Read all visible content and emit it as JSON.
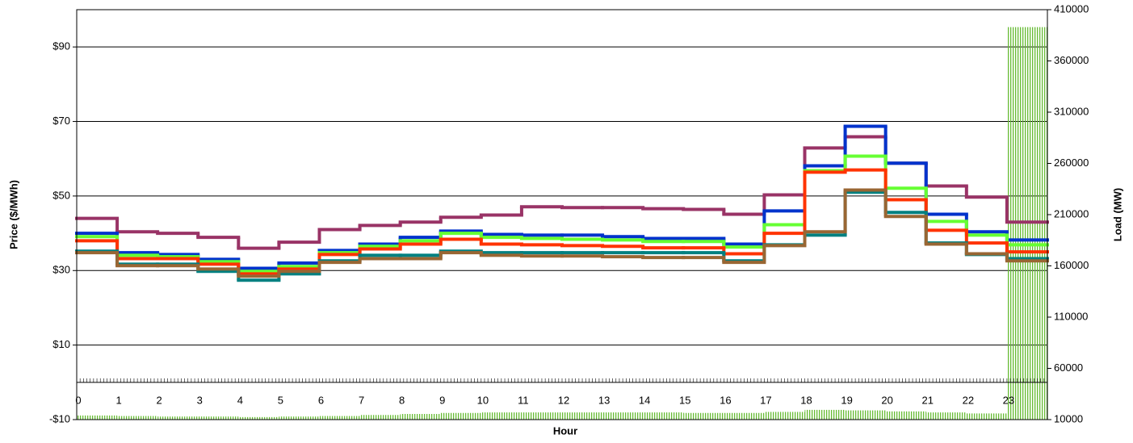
{
  "chart_data": {
    "type": "step-line-bar",
    "x_label": "Hour",
    "y_label": "Price ($/MWh)",
    "y2_label": "Load (MW)",
    "categories": [
      "0",
      "1",
      "2",
      "3",
      "4",
      "5",
      "6",
      "7",
      "8",
      "9",
      "10",
      "11",
      "12",
      "13",
      "14",
      "15",
      "16",
      "17",
      "18",
      "19",
      "20",
      "21",
      "22",
      "23"
    ],
    "xlim": [
      0,
      24
    ],
    "ylim": [
      -10,
      100
    ],
    "yticks": [
      {
        "value": -10,
        "label": "-$10"
      },
      {
        "value": 10,
        "label": "$10"
      },
      {
        "value": 30,
        "label": "$30"
      },
      {
        "value": 50,
        "label": "$50"
      },
      {
        "value": 70,
        "label": "$70"
      },
      {
        "value": 90,
        "label": "$90"
      }
    ],
    "y2lim": [
      10000,
      410000
    ],
    "y2ticks": [
      10000,
      60000,
      110000,
      160000,
      210000,
      260000,
      310000,
      360000,
      410000
    ],
    "grid": true,
    "series": [
      {
        "color": "#993366",
        "values": [
          44,
          40.4,
          40,
          38.9,
          36,
          37.6,
          41,
          42.1,
          43,
          44.3,
          44.9,
          47.1,
          46.9,
          46.9,
          46.6,
          46.4,
          45.1,
          50.3,
          62.9,
          65.9,
          58.8,
          52.7,
          49.7,
          43
        ]
      },
      {
        "color": "#0033cc",
        "values": [
          40,
          34.8,
          34.3,
          33,
          30.6,
          32,
          35.4,
          37.1,
          38.9,
          40.6,
          39.7,
          39.5,
          39.5,
          39.1,
          38.6,
          38.6,
          37.1,
          46,
          58.1,
          68.7,
          58.8,
          45.1,
          40.4,
          38.2
        ]
      },
      {
        "color": "#66ff33",
        "values": [
          39.1,
          34.1,
          33.7,
          32.4,
          29.8,
          31.1,
          34.8,
          36.5,
          38,
          40,
          38.9,
          38.6,
          38.4,
          38.2,
          37.8,
          37.8,
          36.3,
          42.3,
          56.8,
          60.7,
          52.1,
          43.2,
          39.5,
          36.9
        ]
      },
      {
        "color": "#ff3300",
        "values": [
          38,
          33.2,
          33.2,
          31.7,
          29.1,
          30.4,
          34.3,
          35.8,
          37.1,
          38.4,
          37.1,
          36.9,
          36.7,
          36.5,
          36.1,
          36.1,
          34.5,
          40,
          56.4,
          57,
          49,
          40.8,
          37.4,
          35
        ]
      },
      {
        "color": "#008080",
        "values": [
          35.2,
          31.7,
          31.7,
          29.8,
          27.4,
          29.1,
          32.6,
          34.1,
          34.1,
          35.2,
          34.8,
          34.8,
          34.8,
          34.8,
          34.8,
          34.8,
          32.6,
          36.9,
          39.5,
          51,
          45.6,
          37.4,
          34.3,
          33.2
        ]
      },
      {
        "color": "#996633",
        "values": [
          34.8,
          31.3,
          31.3,
          30.4,
          28.5,
          29.8,
          32.2,
          33.2,
          33.2,
          34.8,
          34.1,
          33.9,
          33.9,
          33.7,
          33.5,
          33.5,
          32.2,
          36.7,
          40.4,
          51.6,
          44.5,
          37.1,
          34.5,
          32.6
        ]
      },
      {
        "color": "#66bb33",
        "axis": "y2",
        "values": [
          14000,
          13500,
          13000,
          13000,
          12500,
          13000,
          13500,
          14500,
          15500,
          16500,
          17000,
          17000,
          17000,
          17000,
          17000,
          16500,
          16500,
          17500,
          19500,
          19000,
          18000,
          17000,
          16000,
          393000
        ]
      }
    ]
  }
}
